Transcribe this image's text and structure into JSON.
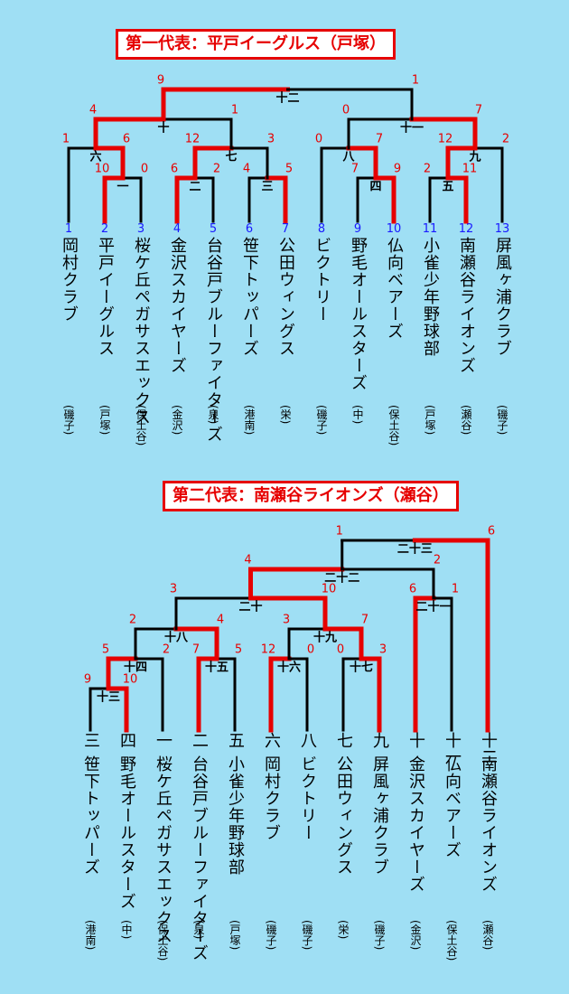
{
  "sections": [
    {
      "title": "第一代表：平戸イーグルス（戸塚）",
      "teams": [
        {
          "seed": "1",
          "name": "岡村クラブ",
          "area": "(磯子)"
        },
        {
          "seed": "2",
          "name": "平戸イーグルス",
          "area": "(戸塚)"
        },
        {
          "seed": "3",
          "name": "桜ケ丘ペガサスエックス",
          "area": "(保土谷)"
        },
        {
          "seed": "4",
          "name": "金沢スカイヤーズ",
          "area": "(金沢)"
        },
        {
          "seed": "5",
          "name": "台谷戸ブルーファイターズ",
          "area": "(泉)"
        },
        {
          "seed": "6",
          "name": "笹下トッパーズ",
          "area": "(港南)"
        },
        {
          "seed": "7",
          "name": "公田ウィングス",
          "area": "(栄)"
        },
        {
          "seed": "8",
          "name": "ビクトリー",
          "area": "(磯子)"
        },
        {
          "seed": "9",
          "name": "野毛オールスターズ",
          "area": "(中)"
        },
        {
          "seed": "10",
          "name": "仏向ベアーズ",
          "area": "(保土谷)"
        },
        {
          "seed": "11",
          "name": "小雀少年野球部",
          "area": "(戸塚)"
        },
        {
          "seed": "12",
          "name": "南瀬谷ライオンズ",
          "area": "(瀬谷)"
        },
        {
          "seed": "13",
          "name": "屏風ヶ浦クラブ",
          "area": "(磯子)"
        }
      ],
      "matches": [
        {
          "no": "一",
          "scores": [
            "10",
            "0"
          ]
        },
        {
          "no": "二",
          "scores": [
            "6",
            "2"
          ]
        },
        {
          "no": "三",
          "scores": [
            "4",
            "5"
          ]
        },
        {
          "no": "四",
          "scores": [
            "7",
            "9"
          ]
        },
        {
          "no": "五",
          "scores": [
            "2",
            "11"
          ]
        },
        {
          "no": "六",
          "scores": [
            "1",
            "6"
          ]
        },
        {
          "no": "七",
          "scores": [
            "12",
            "3"
          ]
        },
        {
          "no": "八",
          "scores": [
            "0",
            "7"
          ]
        },
        {
          "no": "九",
          "scores": [
            "12",
            "2"
          ]
        },
        {
          "no": "十",
          "scores": [
            "4",
            "1"
          ]
        },
        {
          "no": "十一",
          "scores": [
            "0",
            "7"
          ]
        },
        {
          "no": "十二",
          "scores": [
            "9",
            "1"
          ]
        }
      ]
    },
    {
      "title": "第二代表：南瀬谷ライオンズ（瀬谷）",
      "teams": [
        {
          "mark": "三",
          "name": "笹下トッパーズ",
          "area": "(港南)"
        },
        {
          "mark": "四",
          "name": "野毛オールスターズ",
          "area": "(中)"
        },
        {
          "mark": "一",
          "name": "桜ケ丘ペガサスエックス",
          "area": "(保土谷)"
        },
        {
          "mark": "二",
          "name": "台谷戸ブルーファイターズ",
          "area": "(泉)"
        },
        {
          "mark": "五",
          "name": "小雀少年野球部",
          "area": "(戸塚)"
        },
        {
          "mark": "六",
          "name": "岡村クラブ",
          "area": "(磯子)"
        },
        {
          "mark": "八",
          "name": "ビクトリー",
          "area": "(磯子)"
        },
        {
          "mark": "七",
          "name": "公田ウィングス",
          "area": "(栄)"
        },
        {
          "mark": "九",
          "name": "屏風ヶ浦クラブ",
          "area": "(磯子)"
        },
        {
          "mark": "十",
          "name": "金沢スカイヤーズ",
          "area": "(金沢)"
        },
        {
          "mark": "十一",
          "name": "仏向ベアーズ",
          "area": "(保土谷)"
        },
        {
          "mark": "十二",
          "name": "南瀬谷ライオンズ",
          "area": "(瀬谷)"
        }
      ],
      "matches": [
        {
          "no": "十三",
          "scores": [
            "9",
            "10"
          ]
        },
        {
          "no": "十四",
          "scores": [
            "5",
            "2"
          ]
        },
        {
          "no": "十五",
          "scores": [
            "7",
            "5"
          ]
        },
        {
          "no": "十六",
          "scores": [
            "12",
            "0"
          ]
        },
        {
          "no": "十七",
          "scores": [
            "0",
            "3"
          ]
        },
        {
          "no": "十八",
          "scores": [
            "2",
            "4"
          ]
        },
        {
          "no": "十九",
          "scores": [
            "3",
            "7"
          ]
        },
        {
          "no": "二十",
          "scores": [
            "3",
            "10"
          ]
        },
        {
          "no": "二十一",
          "scores": [
            "6",
            "1"
          ]
        },
        {
          "no": "二十二",
          "scores": [
            "4",
            "2"
          ]
        },
        {
          "no": "二十三",
          "scores": [
            "1",
            "6"
          ]
        }
      ]
    }
  ],
  "colors": {
    "background": "#9fdff4",
    "winner": "#e60000",
    "line": "#000000",
    "seed": "#1a1aff"
  }
}
